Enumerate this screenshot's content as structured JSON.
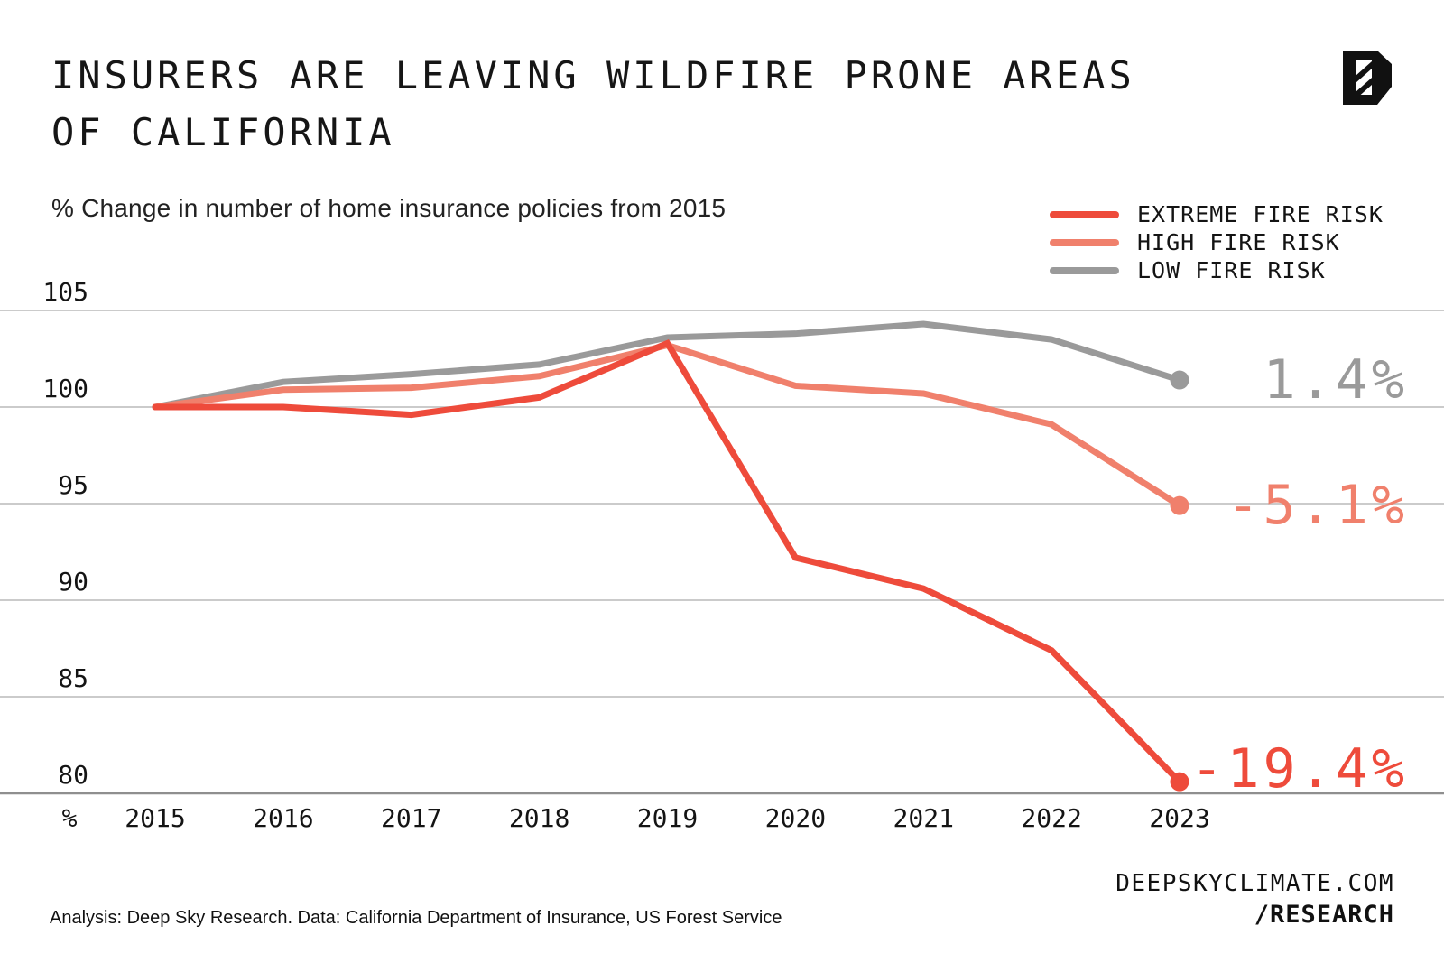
{
  "header": {
    "title_line1": "INSURERS ARE LEAVING WILDFIRE PRONE AREAS",
    "title_line2": "OF CALIFORNIA",
    "subtitle": "% Change in number of home insurance policies from 2015"
  },
  "legend": {
    "items": [
      {
        "label": "EXTREME FIRE RISK",
        "color": "#ee4b3b"
      },
      {
        "label": "HIGH FIRE RISK",
        "color": "#f0806c"
      },
      {
        "label": "LOW FIRE RISK",
        "color": "#9a9a9a"
      }
    ]
  },
  "chart_data": {
    "type": "line",
    "title": "INSURERS ARE LEAVING WILDFIRE PRONE AREAS OF CALIFORNIA",
    "subtitle": "% Change in number of home insurance policies from 2015",
    "x": [
      "2015",
      "2016",
      "2017",
      "2018",
      "2019",
      "2020",
      "2021",
      "2022",
      "2023"
    ],
    "x_axis_unit": "%",
    "baseline_index": 100,
    "yticks": [
      105,
      100,
      95,
      90,
      85,
      80
    ],
    "ylim": [
      80,
      105
    ],
    "grid": "horizontal",
    "legend_position": "top-right",
    "series": [
      {
        "name": "EXTREME FIRE RISK",
        "color": "#ee4b3b",
        "values": [
          100,
          100.0,
          99.6,
          100.5,
          103.3,
          92.2,
          90.6,
          87.4,
          80.6
        ],
        "end_label": "-19.4%"
      },
      {
        "name": "HIGH FIRE RISK",
        "color": "#f0806c",
        "values": [
          100,
          100.9,
          101.0,
          101.6,
          103.2,
          101.1,
          100.7,
          99.1,
          94.9
        ],
        "end_label": "-5.1%"
      },
      {
        "name": "LOW FIRE RISK",
        "color": "#9a9a9a",
        "values": [
          100,
          101.3,
          101.7,
          102.2,
          103.6,
          103.8,
          104.3,
          103.5,
          101.4
        ],
        "end_label": "1.4%"
      }
    ],
    "gridline_color": "#cbcbcb",
    "bottom_gridline_color": "#8f8f8f",
    "tick_color": "#141414"
  },
  "footer": {
    "credit": "Analysis: Deep Sky Research. Data: California Department of Insurance, US Forest Service",
    "site": "DEEPSKYCLIMATE.COM",
    "site2": "/RESEARCH"
  },
  "logo": {
    "name": "deep-sky-logo",
    "color": "#111111"
  }
}
